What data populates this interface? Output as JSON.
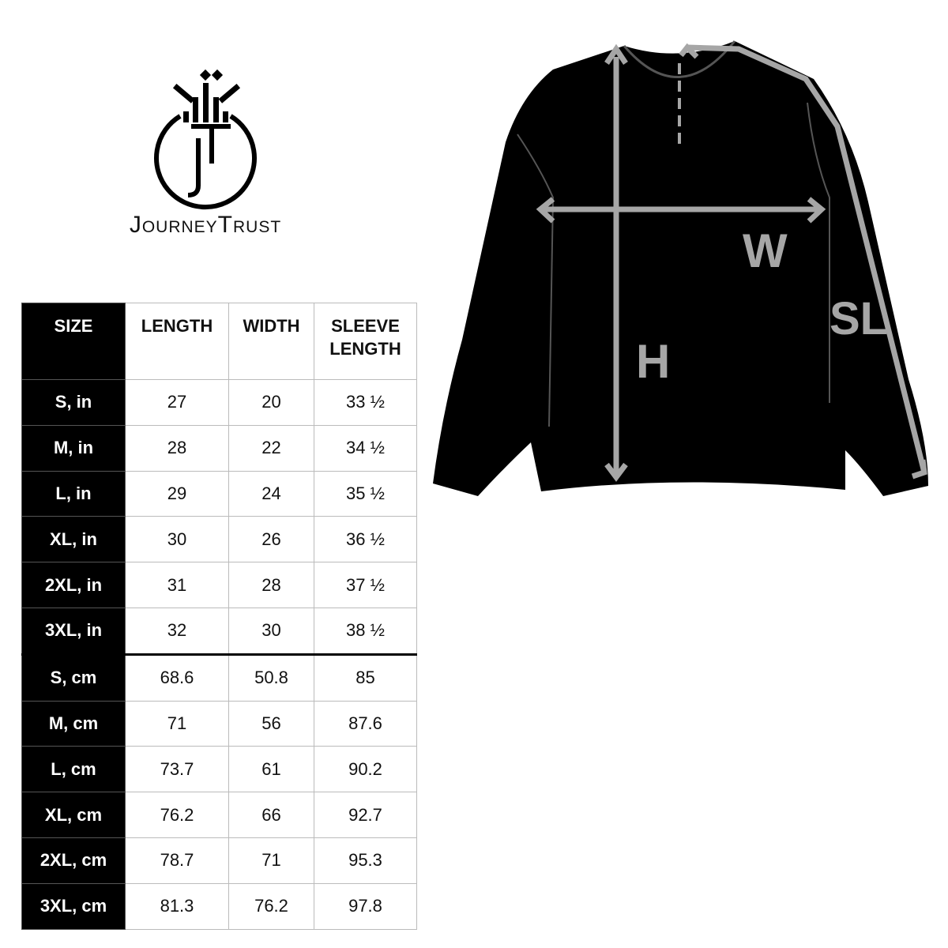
{
  "brand": {
    "name": "JourneyTrust",
    "monogram": "jT"
  },
  "table": {
    "headers": [
      "SIZE",
      "LENGTH",
      "WIDTH",
      "SLEEVE LENGTH"
    ],
    "rows": [
      [
        "S, in",
        "27",
        "20",
        "33 ½"
      ],
      [
        "M, in",
        "28",
        "22",
        "34 ½"
      ],
      [
        "L, in",
        "29",
        "24",
        "35 ½"
      ],
      [
        "XL, in",
        "30",
        "26",
        "36 ½"
      ],
      [
        "2XL, in",
        "31",
        "28",
        "37 ½"
      ],
      [
        "3XL, in",
        "32",
        "30",
        "38 ½"
      ],
      [
        "S, cm",
        "68.6",
        "50.8",
        "85"
      ],
      [
        "M, cm",
        "71",
        "56",
        "87.6"
      ],
      [
        "L, cm",
        "73.7",
        "61",
        "90.2"
      ],
      [
        "XL, cm",
        "76.2",
        "66",
        "92.7"
      ],
      [
        "2XL, cm",
        "78.7",
        "71",
        "95.3"
      ],
      [
        "3XL, cm",
        "81.3",
        "76.2",
        "97.8"
      ]
    ]
  },
  "diagram": {
    "labels": {
      "height": "H",
      "width": "W",
      "sleeve": "SL"
    },
    "garment_color": "#000000",
    "measure_color": "#a6a6a6"
  }
}
